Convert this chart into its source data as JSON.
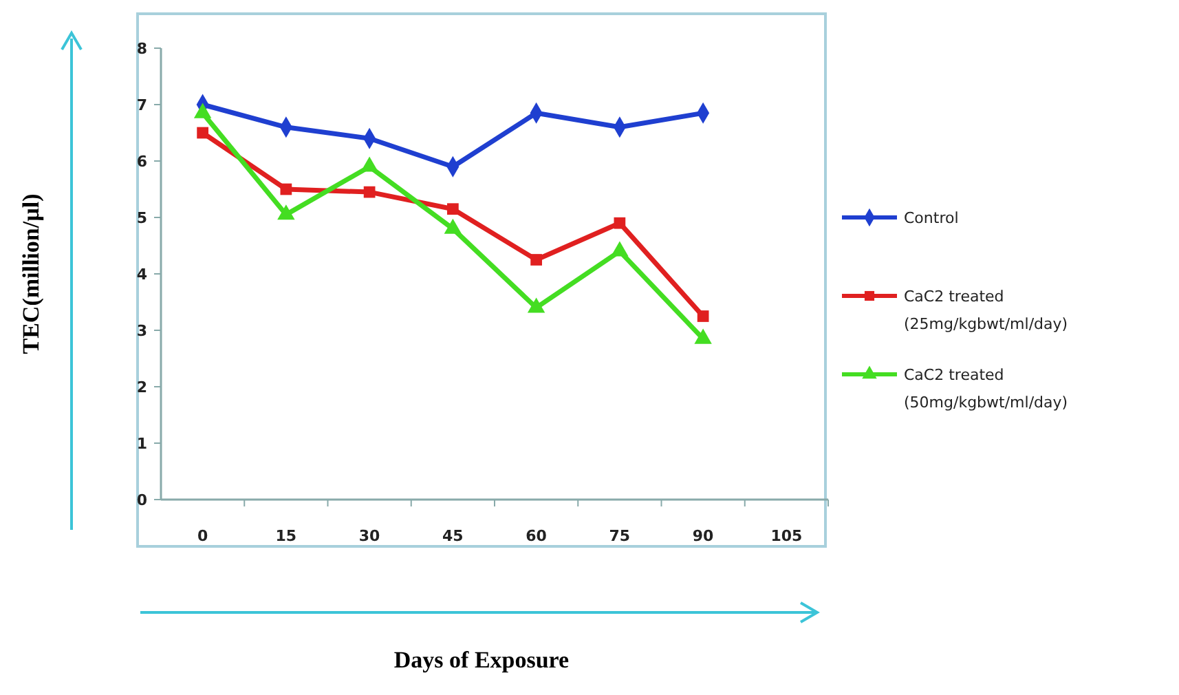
{
  "chart_data": {
    "type": "line",
    "xlabel": "Days of Exposure",
    "ylabel": "TEC(million/µl)",
    "categories": [
      "0",
      "15",
      "30",
      "45",
      "60",
      "75",
      "90",
      "105"
    ],
    "ylim": [
      0,
      8
    ],
    "yticks": [
      0,
      1,
      2,
      3,
      4,
      5,
      6,
      7,
      8
    ],
    "grid": false,
    "legend": "right",
    "series": [
      {
        "name": "Control",
        "color": "#1f3fd0",
        "marker": "diamond",
        "values": [
          7.0,
          6.6,
          6.4,
          5.9,
          6.85,
          6.6,
          6.85,
          null
        ]
      },
      {
        "name": "CaC2 treated (25mg/kgbwt/ml/day)",
        "color": "#e02020",
        "marker": "square",
        "values": [
          6.5,
          5.5,
          5.45,
          5.15,
          4.25,
          4.9,
          3.25,
          null
        ]
      },
      {
        "name": "CaC2 treated (50mg/kgbwt/ml/day)",
        "color": "#44dd22",
        "marker": "triangle",
        "values": [
          6.85,
          5.05,
          5.9,
          4.8,
          3.4,
          4.4,
          2.85,
          null
        ]
      }
    ]
  }
}
